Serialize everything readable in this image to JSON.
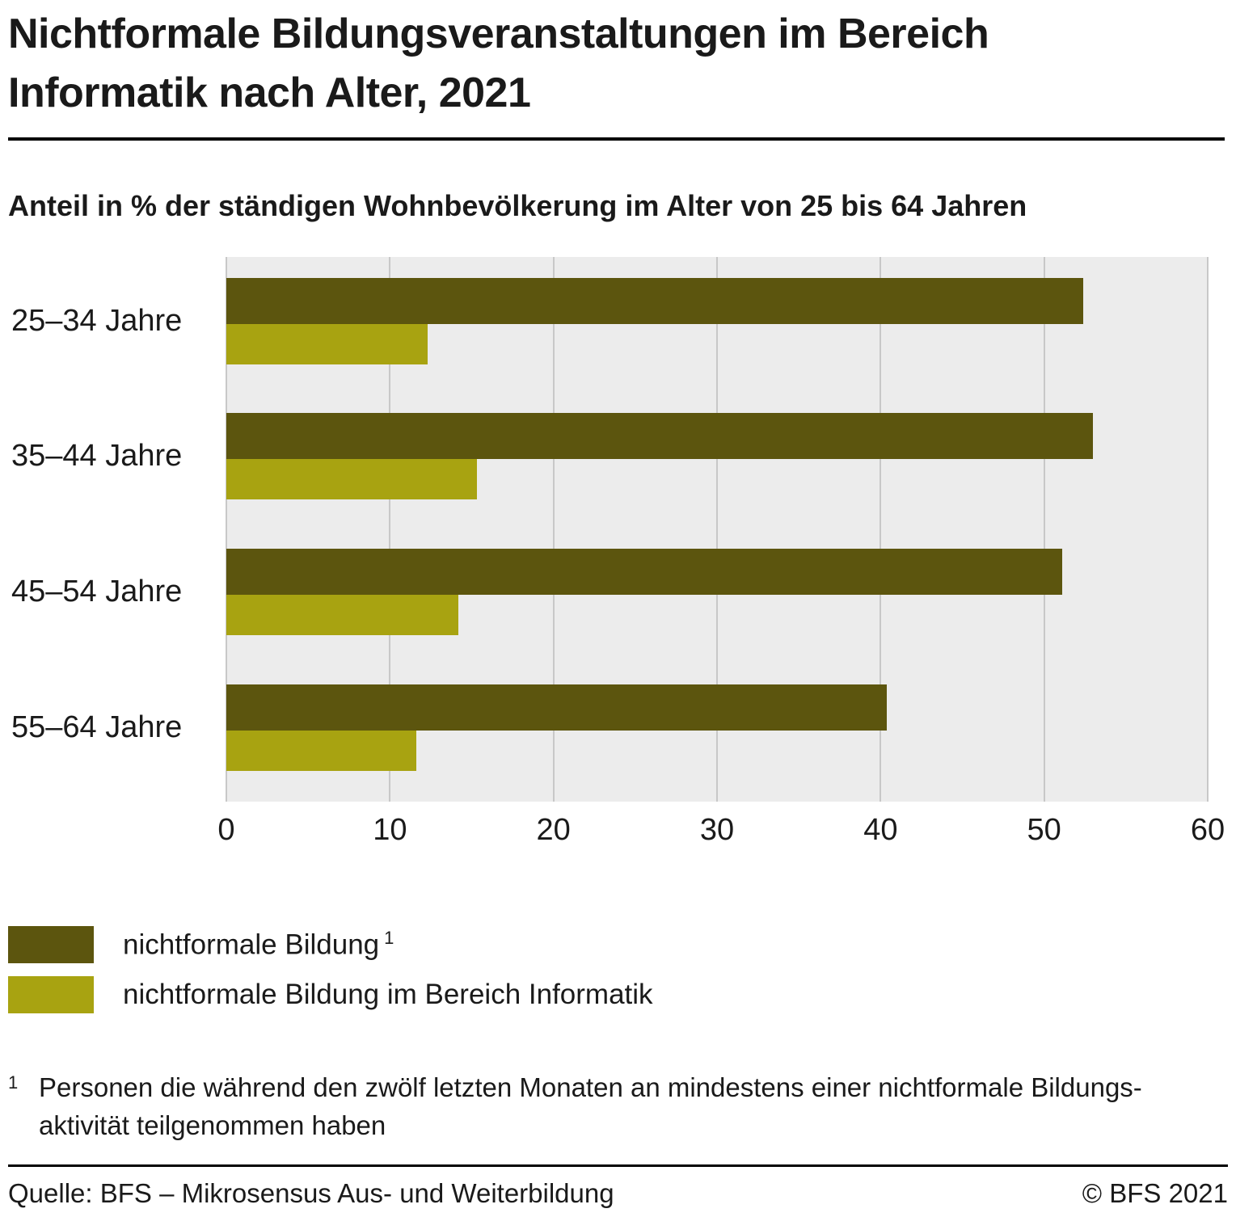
{
  "header": {
    "title": "Nichtformale Bildungsveranstaltungen im Bereich Informatik nach Alter, 2021"
  },
  "subtitle": "Anteil in % der ständigen Wohnbevölkerung im Alter von 25 bis 64 Jahren",
  "chart_data": {
    "type": "bar",
    "orientation": "horizontal",
    "title": "Nichtformale Bildungsveranstaltungen im Bereich Informatik nach Alter, 2021",
    "subtitle": "Anteil in % der ständigen Wohnbevölkerung im Alter von 25 bis 64 Jahren",
    "categories": [
      "25–34 Jahre",
      "35–44 Jahre",
      "45–54 Jahre",
      "55–64 Jahre"
    ],
    "series": [
      {
        "key": "nichtformale-bildung",
        "name": "nichtformale Bildung",
        "color": "#5c550e",
        "values": [
          52.4,
          53.0,
          51.1,
          40.4
        ]
      },
      {
        "key": "informatik",
        "name": "nichtformale Bildung im Bereich Informatik",
        "color": "#a8a311",
        "values": [
          12.3,
          15.3,
          14.2,
          11.6
        ]
      }
    ],
    "xlim": [
      0,
      60
    ],
    "xticks": [
      0,
      10,
      20,
      30,
      40,
      50,
      60
    ],
    "grid": true,
    "plot_background": "#ececec",
    "gridline_color": "#c8c8c8",
    "legend_position": "bottom"
  },
  "legend": [
    {
      "label": "nichtformale Bildung",
      "superscript": "1",
      "color": "#5c550e"
    },
    {
      "label": "nichtformale Bildung im Bereich Informatik",
      "superscript": "",
      "color": "#a8a311"
    }
  ],
  "footnote": {
    "marker": "1",
    "lines": [
      "Personen die während den zwölf letzten Monaten an mindestens einer nichtformale Bildungs-",
      "aktivität teilgenommen haben"
    ]
  },
  "footer": {
    "source": "Quelle: BFS – Mikrosensus Aus- und Weiterbildung",
    "copyright": "© BFS 2021"
  }
}
